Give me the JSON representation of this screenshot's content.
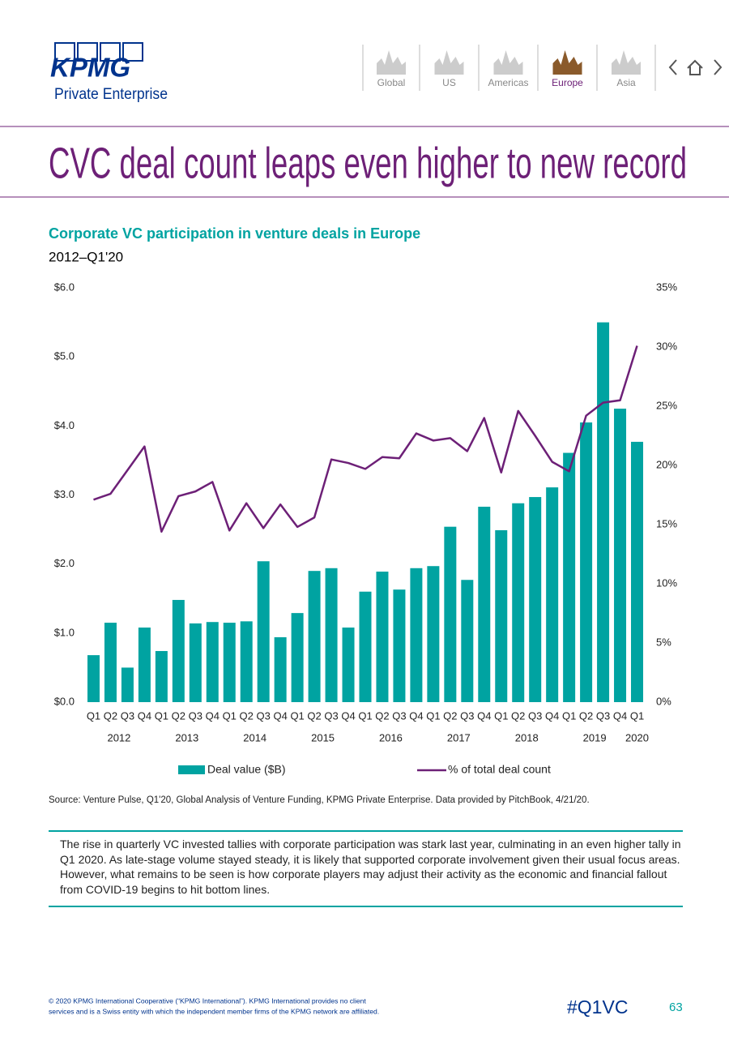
{
  "header": {
    "logo": "KPMG",
    "subtitle": "Private Enterprise",
    "tabs": [
      "Global",
      "US",
      "Americas",
      "Europe",
      "Asia"
    ],
    "active_tab": 3
  },
  "title": "CVC deal count leaps even higher to new record",
  "chart_data": {
    "type": "combo",
    "title": "Corporate VC participation in venture deals in Europe",
    "subtitle": "2012–Q1'20",
    "categories": [
      "Q1",
      "Q2",
      "Q3",
      "Q4",
      "Q1",
      "Q2",
      "Q3",
      "Q4",
      "Q1",
      "Q2",
      "Q3",
      "Q4",
      "Q1",
      "Q2",
      "Q3",
      "Q4",
      "Q1",
      "Q2",
      "Q3",
      "Q4",
      "Q1",
      "Q2",
      "Q3",
      "Q4",
      "Q1",
      "Q2",
      "Q3",
      "Q4",
      "Q1",
      "Q2",
      "Q3",
      "Q4",
      "Q1"
    ],
    "years": [
      "2012",
      "2013",
      "2014",
      "2015",
      "2016",
      "2017",
      "2018",
      "2019",
      "2020"
    ],
    "series": [
      {
        "name": "Deal value ($B)",
        "type": "bar",
        "color": "#00a3a1",
        "values": [
          0.68,
          1.15,
          0.5,
          1.08,
          0.74,
          1.48,
          1.14,
          1.16,
          1.15,
          1.17,
          2.04,
          0.94,
          1.29,
          1.9,
          1.94,
          1.08,
          1.6,
          1.89,
          1.63,
          1.94,
          1.97,
          2.54,
          1.77,
          2.83,
          2.49,
          2.88,
          2.97,
          3.11,
          3.61,
          4.05,
          5.5,
          4.25,
          3.77
        ]
      },
      {
        "name": "% of total deal count",
        "type": "line",
        "color": "#6d2077",
        "axis": "y2",
        "values": [
          17.1,
          17.6,
          19.6,
          21.6,
          14.4,
          17.4,
          17.8,
          18.6,
          14.5,
          16.8,
          14.7,
          16.7,
          14.8,
          15.6,
          20.5,
          20.2,
          19.7,
          20.7,
          20.6,
          22.7,
          22.1,
          22.3,
          21.2,
          24.0,
          19.4,
          24.6,
          22.5,
          20.3,
          19.5,
          24.2,
          25.3,
          25.5,
          30.1
        ]
      }
    ],
    "ylim": [
      0,
      6
    ],
    "yticks": [
      {
        "value": 0,
        "label": "$0.0"
      },
      {
        "value": 1,
        "label": "$1.0"
      },
      {
        "value": 2,
        "label": "$2.0"
      },
      {
        "value": 3,
        "label": "$3.0"
      },
      {
        "value": 4,
        "label": "$4.0"
      },
      {
        "value": 5,
        "label": "$5.0"
      },
      {
        "value": 6,
        "label": "$6.0"
      }
    ],
    "y2lim": [
      0,
      35
    ],
    "y2ticks": [
      {
        "value": 0,
        "label": "0%"
      },
      {
        "value": 5,
        "label": "5%"
      },
      {
        "value": 10,
        "label": "10%"
      },
      {
        "value": 15,
        "label": "15%"
      },
      {
        "value": 20,
        "label": "20%"
      },
      {
        "value": 25,
        "label": "25%"
      },
      {
        "value": 30,
        "label": "30%"
      },
      {
        "value": 35,
        "label": "35%"
      }
    ],
    "grid": false,
    "legend": "bottom"
  },
  "source": "Source: Venture Pulse, Q1'20, Global Analysis of Venture Funding, KPMG Private Enterprise. Data provided by PitchBook, 4/21/20.",
  "commentary": "The rise in quarterly VC invested tallies with corporate participation was stark last year, culminating in an even higher tally in Q1 2020. As late-stage volume stayed steady, it is likely that supported corporate involvement given their usual focus areas. However, what remains to be seen is how corporate players may adjust their activity as the economic and financial fallout from COVID-19 begins to hit bottom lines.",
  "footer": {
    "copyright": [
      "© 2020 KPMG International Cooperative (“KPMG International”). KPMG International provides no client",
      "services and is a Swiss entity with which the independent member firms of the KPMG network are affiliated."
    ],
    "hashtag": "#Q1VC",
    "page": 63
  }
}
